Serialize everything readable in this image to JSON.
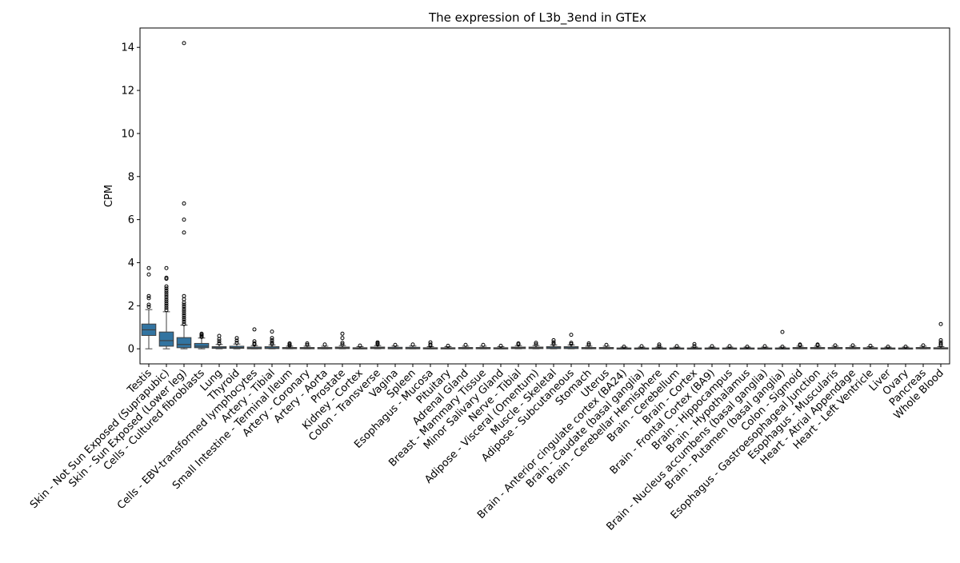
{
  "chart_data": {
    "type": "box",
    "title": "The expression of L3b_3end in GTEx",
    "xlabel": "",
    "ylabel": "CPM",
    "ylim": [
      -0.7,
      14.9
    ],
    "yticks": [
      0,
      2,
      4,
      6,
      8,
      10,
      12,
      14
    ],
    "grid": false,
    "box_color": "#3274a1",
    "categories": [
      "Testis",
      "Skin - Not Sun Exposed (Suprapubic)",
      "Skin - Sun Exposed (Lower leg)",
      "Cells - Cultured fibroblasts",
      "Lung",
      "Thyroid",
      "Cells - EBV-transformed lymphocytes",
      "Artery - Tibial",
      "Small Intestine - Terminal Ileum",
      "Artery - Coronary",
      "Artery - Aorta",
      "Prostate",
      "Kidney - Cortex",
      "Colon - Transverse",
      "Vagina",
      "Spleen",
      "Esophagus - Mucosa",
      "Pituitary",
      "Adrenal Gland",
      "Breast - Mammary Tissue",
      "Minor Salivary Gland",
      "Nerve - Tibial",
      "Adipose - Visceral (Omentum)",
      "Muscle - Skeletal",
      "Adipose - Subcutaneous",
      "Stomach",
      "Uterus",
      "Brain - Anterior cingulate cortex (BA24)",
      "Brain - Caudate (basal ganglia)",
      "Brain - Cerebellar Hemisphere",
      "Brain - Cerebellum",
      "Brain - Cortex",
      "Brain - Frontal Cortex (BA9)",
      "Brain - Hippocampus",
      "Brain - Hypothalamus",
      "Brain - Nucleus accumbens (basal ganglia)",
      "Brain - Putamen (basal ganglia)",
      "Colon - Sigmoid",
      "Esophagus - Gastroesophageal Junction",
      "Esophagus - Muscularis",
      "Heart - Atrial Appendage",
      "Heart - Left Ventricle",
      "Liver",
      "Ovary",
      "Pancreas",
      "Whole Blood"
    ],
    "boxes": [
      {
        "q1": 0.62,
        "median": 0.88,
        "q3": 1.15,
        "whislo": 0.0,
        "whishi": 1.82,
        "fliers": [
          1.95,
          2.05,
          2.35,
          2.45,
          3.45,
          3.75
        ]
      },
      {
        "q1": 0.12,
        "median": 0.38,
        "q3": 0.78,
        "whislo": 0.0,
        "whishi": 1.72,
        "fliers": [
          1.8,
          1.9,
          2.0,
          2.1,
          2.2,
          2.3,
          2.4,
          2.5,
          2.6,
          2.7,
          2.8,
          2.9,
          3.25,
          3.3,
          3.75
        ]
      },
      {
        "q1": 0.05,
        "median": 0.2,
        "q3": 0.52,
        "whislo": 0.0,
        "whishi": 1.1,
        "fliers": [
          1.15,
          1.25,
          1.35,
          1.45,
          1.55,
          1.65,
          1.75,
          1.85,
          1.95,
          2.05,
          2.15,
          2.3,
          2.45,
          5.4,
          6.0,
          6.75,
          14.2
        ]
      },
      {
        "q1": 0.05,
        "median": 0.12,
        "q3": 0.25,
        "whislo": 0.0,
        "whishi": 0.5,
        "fliers": [
          0.55,
          0.6,
          0.65,
          0.7
        ]
      },
      {
        "q1": 0.02,
        "median": 0.05,
        "q3": 0.1,
        "whislo": 0.0,
        "whishi": 0.2,
        "fliers": [
          0.25,
          0.35,
          0.45,
          0.6
        ]
      },
      {
        "q1": 0.02,
        "median": 0.06,
        "q3": 0.12,
        "whislo": 0.0,
        "whishi": 0.22,
        "fliers": [
          0.28,
          0.38,
          0.5
        ]
      },
      {
        "q1": 0.0,
        "median": 0.03,
        "q3": 0.08,
        "whislo": 0.0,
        "whishi": 0.15,
        "fliers": [
          0.2,
          0.25,
          0.35,
          0.9
        ]
      },
      {
        "q1": 0.01,
        "median": 0.04,
        "q3": 0.1,
        "whislo": 0.0,
        "whishi": 0.18,
        "fliers": [
          0.22,
          0.3,
          0.4,
          0.5,
          0.8
        ]
      },
      {
        "q1": 0.01,
        "median": 0.03,
        "q3": 0.06,
        "whislo": 0.0,
        "whishi": 0.12,
        "fliers": [
          0.15,
          0.2,
          0.25
        ]
      },
      {
        "q1": 0.0,
        "median": 0.03,
        "q3": 0.06,
        "whislo": 0.0,
        "whishi": 0.12,
        "fliers": [
          0.18,
          0.25
        ]
      },
      {
        "q1": 0.0,
        "median": 0.03,
        "q3": 0.06,
        "whislo": 0.0,
        "whishi": 0.12,
        "fliers": [
          0.2
        ]
      },
      {
        "q1": 0.01,
        "median": 0.04,
        "q3": 0.08,
        "whislo": 0.0,
        "whishi": 0.15,
        "fliers": [
          0.2,
          0.28,
          0.5,
          0.7
        ]
      },
      {
        "q1": 0.0,
        "median": 0.02,
        "q3": 0.05,
        "whislo": 0.0,
        "whishi": 0.1,
        "fliers": [
          0.15
        ]
      },
      {
        "q1": 0.01,
        "median": 0.04,
        "q3": 0.08,
        "whislo": 0.0,
        "whishi": 0.15,
        "fliers": [
          0.2,
          0.25,
          0.3
        ]
      },
      {
        "q1": 0.0,
        "median": 0.03,
        "q3": 0.07,
        "whislo": 0.0,
        "whishi": 0.13,
        "fliers": [
          0.18
        ]
      },
      {
        "q1": 0.0,
        "median": 0.03,
        "q3": 0.07,
        "whislo": 0.0,
        "whishi": 0.13,
        "fliers": [
          0.2
        ]
      },
      {
        "q1": 0.0,
        "median": 0.02,
        "q3": 0.05,
        "whislo": 0.0,
        "whishi": 0.1,
        "fliers": [
          0.15,
          0.2,
          0.3
        ]
      },
      {
        "q1": 0.0,
        "median": 0.02,
        "q3": 0.05,
        "whislo": 0.0,
        "whishi": 0.1,
        "fliers": [
          0.14
        ]
      },
      {
        "q1": 0.0,
        "median": 0.03,
        "q3": 0.06,
        "whislo": 0.0,
        "whishi": 0.12,
        "fliers": [
          0.18
        ]
      },
      {
        "q1": 0.0,
        "median": 0.03,
        "q3": 0.06,
        "whislo": 0.0,
        "whishi": 0.12,
        "fliers": [
          0.18
        ]
      },
      {
        "q1": 0.0,
        "median": 0.02,
        "q3": 0.05,
        "whislo": 0.0,
        "whishi": 0.1,
        "fliers": [
          0.14
        ]
      },
      {
        "q1": 0.01,
        "median": 0.04,
        "q3": 0.08,
        "whislo": 0.0,
        "whishi": 0.15,
        "fliers": [
          0.2,
          0.25
        ]
      },
      {
        "q1": 0.01,
        "median": 0.04,
        "q3": 0.08,
        "whislo": 0.0,
        "whishi": 0.15,
        "fliers": [
          0.2,
          0.28
        ]
      },
      {
        "q1": 0.01,
        "median": 0.05,
        "q3": 0.1,
        "whislo": 0.0,
        "whishi": 0.18,
        "fliers": [
          0.22,
          0.3,
          0.4
        ]
      },
      {
        "q1": 0.01,
        "median": 0.05,
        "q3": 0.1,
        "whislo": 0.0,
        "whishi": 0.18,
        "fliers": [
          0.22,
          0.28,
          0.65
        ]
      },
      {
        "q1": 0.0,
        "median": 0.03,
        "q3": 0.06,
        "whislo": 0.0,
        "whishi": 0.12,
        "fliers": [
          0.18,
          0.25
        ]
      },
      {
        "q1": 0.0,
        "median": 0.03,
        "q3": 0.06,
        "whislo": 0.0,
        "whishi": 0.12,
        "fliers": [
          0.18
        ]
      },
      {
        "q1": 0.0,
        "median": 0.02,
        "q3": 0.04,
        "whislo": 0.0,
        "whishi": 0.08,
        "fliers": [
          0.1
        ]
      },
      {
        "q1": 0.0,
        "median": 0.02,
        "q3": 0.04,
        "whislo": 0.0,
        "whishi": 0.08,
        "fliers": [
          0.12
        ]
      },
      {
        "q1": 0.0,
        "median": 0.02,
        "q3": 0.04,
        "whislo": 0.0,
        "whishi": 0.08,
        "fliers": [
          0.12,
          0.2
        ]
      },
      {
        "q1": 0.0,
        "median": 0.02,
        "q3": 0.04,
        "whislo": 0.0,
        "whishi": 0.08,
        "fliers": [
          0.12
        ]
      },
      {
        "q1": 0.0,
        "median": 0.02,
        "q3": 0.04,
        "whislo": 0.0,
        "whishi": 0.08,
        "fliers": [
          0.12,
          0.22
        ]
      },
      {
        "q1": 0.0,
        "median": 0.02,
        "q3": 0.04,
        "whislo": 0.0,
        "whishi": 0.08,
        "fliers": [
          0.12
        ]
      },
      {
        "q1": 0.0,
        "median": 0.02,
        "q3": 0.04,
        "whislo": 0.0,
        "whishi": 0.08,
        "fliers": [
          0.12
        ]
      },
      {
        "q1": 0.0,
        "median": 0.02,
        "q3": 0.04,
        "whislo": 0.0,
        "whishi": 0.08,
        "fliers": [
          0.1
        ]
      },
      {
        "q1": 0.0,
        "median": 0.02,
        "q3": 0.04,
        "whislo": 0.0,
        "whishi": 0.08,
        "fliers": [
          0.12
        ]
      },
      {
        "q1": 0.0,
        "median": 0.02,
        "q3": 0.04,
        "whislo": 0.0,
        "whishi": 0.08,
        "fliers": [
          0.1,
          0.78
        ]
      },
      {
        "q1": 0.0,
        "median": 0.03,
        "q3": 0.06,
        "whislo": 0.0,
        "whishi": 0.12,
        "fliers": [
          0.16,
          0.2
        ]
      },
      {
        "q1": 0.0,
        "median": 0.03,
        "q3": 0.06,
        "whislo": 0.0,
        "whishi": 0.12,
        "fliers": [
          0.16,
          0.2
        ]
      },
      {
        "q1": 0.0,
        "median": 0.03,
        "q3": 0.06,
        "whislo": 0.0,
        "whishi": 0.12,
        "fliers": [
          0.16
        ]
      },
      {
        "q1": 0.0,
        "median": 0.03,
        "q3": 0.06,
        "whislo": 0.0,
        "whishi": 0.12,
        "fliers": [
          0.16
        ]
      },
      {
        "q1": 0.0,
        "median": 0.02,
        "q3": 0.05,
        "whislo": 0.0,
        "whishi": 0.1,
        "fliers": [
          0.14
        ]
      },
      {
        "q1": 0.0,
        "median": 0.02,
        "q3": 0.04,
        "whislo": 0.0,
        "whishi": 0.08,
        "fliers": [
          0.1
        ]
      },
      {
        "q1": 0.0,
        "median": 0.02,
        "q3": 0.04,
        "whislo": 0.0,
        "whishi": 0.08,
        "fliers": [
          0.1
        ]
      },
      {
        "q1": 0.0,
        "median": 0.03,
        "q3": 0.06,
        "whislo": 0.0,
        "whishi": 0.12,
        "fliers": [
          0.16
        ]
      },
      {
        "q1": 0.0,
        "median": 0.02,
        "q3": 0.05,
        "whislo": 0.0,
        "whishi": 0.1,
        "fliers": [
          0.15,
          0.22,
          0.3,
          0.4,
          1.15
        ]
      }
    ]
  }
}
